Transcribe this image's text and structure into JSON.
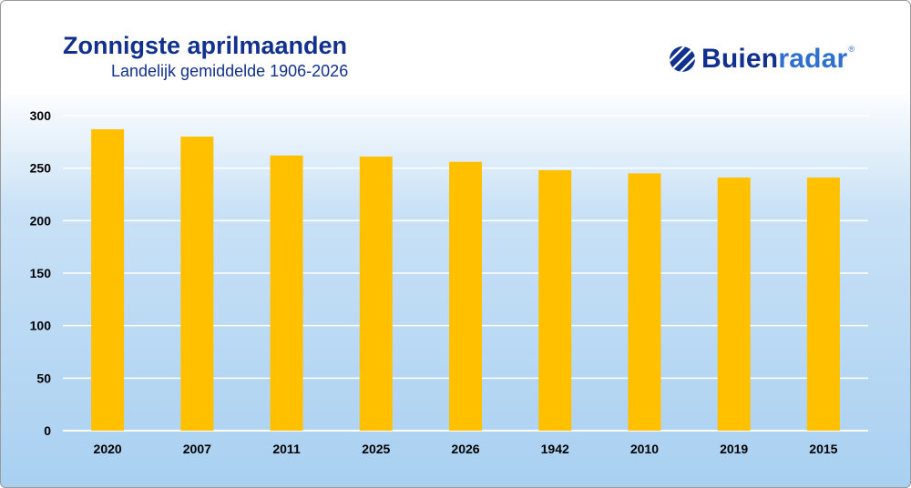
{
  "header": {
    "title": "Zonnigste aprilmaanden",
    "subtitle": "Landelijk gemiddelde 1906-2026"
  },
  "logo": {
    "brand_part1": "Buien",
    "brand_part2": "radar",
    "registered": "®",
    "icon": "buienradar-logo-icon"
  },
  "colors": {
    "bar": "#ffc000",
    "title": "#12318f",
    "gridline": "#ffffff",
    "axis_text": "#000000"
  },
  "chart_data": {
    "type": "bar",
    "categories": [
      "2020",
      "2007",
      "2011",
      "2025",
      "2026",
      "1942",
      "2010",
      "2019",
      "2015"
    ],
    "values": [
      287,
      280,
      262,
      261,
      256,
      248,
      245,
      241,
      241
    ],
    "title": "Zonnigste aprilmaanden",
    "subtitle": "Landelijk gemiddelde 1906-2026",
    "xlabel": "",
    "ylabel": "",
    "ylim": [
      0,
      300
    ],
    "yticks": [
      0,
      50,
      100,
      150,
      200,
      250,
      300
    ],
    "grid": true,
    "legend": "none"
  }
}
